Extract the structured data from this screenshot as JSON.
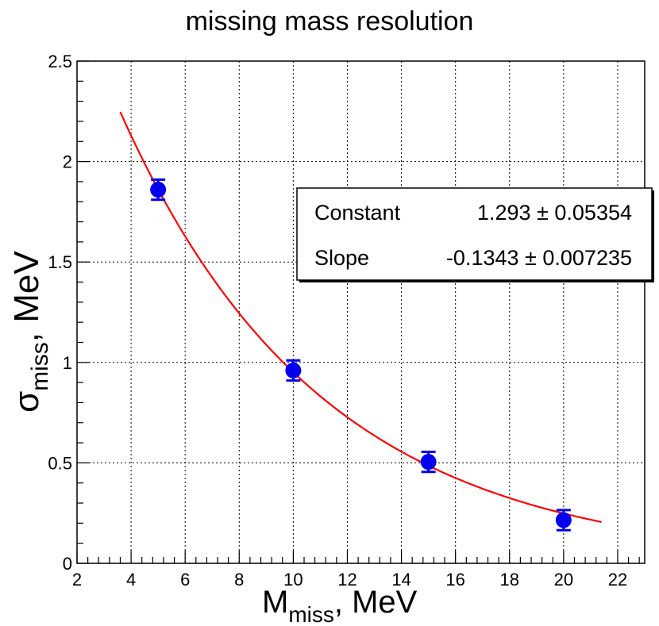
{
  "chart_data": {
    "type": "scatter",
    "title": "missing mass resolution",
    "xlabel": {
      "main": "M",
      "sub": "miss",
      "unit": "MeV"
    },
    "ylabel": {
      "main": "σ",
      "sub": "miss",
      "unit": "MeV"
    },
    "xlim": [
      2,
      23
    ],
    "ylim": [
      0,
      2.5
    ],
    "x_ticks": [
      2,
      4,
      6,
      8,
      10,
      12,
      14,
      16,
      18,
      20,
      22
    ],
    "x_tick_labels": [
      "2",
      "4",
      "6",
      "8",
      "10",
      "12",
      "14",
      "16",
      "18",
      "20",
      "22"
    ],
    "y_ticks": [
      0,
      0.5,
      1,
      1.5,
      2,
      2.5
    ],
    "y_tick_labels": [
      "0",
      "0.5",
      "1",
      "1.5",
      "2",
      "2.5"
    ],
    "grid": true,
    "series": [
      {
        "kind": "points-with-errors",
        "color": "#0000ee",
        "x": [
          5,
          10,
          15,
          20
        ],
        "y": [
          1.86,
          0.96,
          0.505,
          0.215
        ],
        "yerr": [
          0.05,
          0.05,
          0.05,
          0.05
        ]
      },
      {
        "kind": "fit-curve",
        "color": "#ff0000",
        "function": "exp(Constant + Slope*x)",
        "x_range": [
          3.6,
          21.4
        ],
        "constant": 1.293,
        "slope": -0.1343
      }
    ],
    "stats_box": {
      "position": "top-right",
      "rows": [
        {
          "name": "Constant",
          "value": "1.293",
          "pm": "±",
          "error": "0.05354"
        },
        {
          "name": "Slope",
          "value": "-0.1343",
          "pm": "±",
          "error": "0.007235"
        }
      ]
    }
  }
}
